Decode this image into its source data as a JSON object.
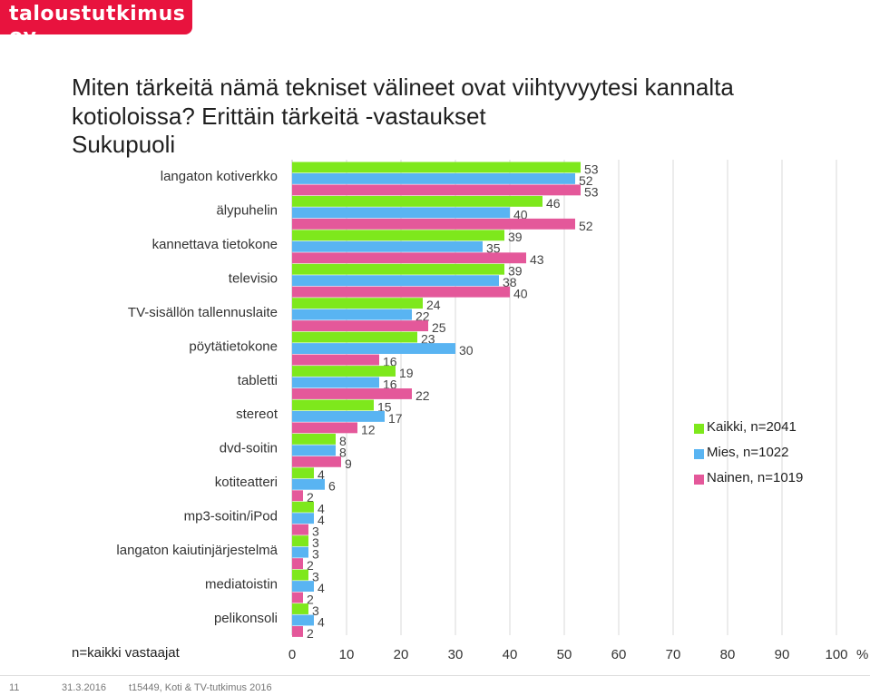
{
  "brand": {
    "logo_text": "taloustutkimus oy"
  },
  "title": "Miten tärkeitä nämä tekniset välineet ovat viihtyvyytesi kannalta kotioloissa? Erittäin tärkeitä -vastaukset",
  "subtitle": "Sukupuoli",
  "footnote": "n=kaikki vastaajat",
  "footer": {
    "page": "11",
    "date": "31.3.2016",
    "project": "t15449, Koti & TV-tutkimus 2016"
  },
  "legend": [
    {
      "label": "Kaikki, n=2041",
      "color": "#7ee81c"
    },
    {
      "label": "Mies, n=1022",
      "color": "#59b4f2"
    },
    {
      "label": "Nainen, n=1019",
      "color": "#e4589a"
    }
  ],
  "chart_data": {
    "type": "bar",
    "orientation": "horizontal",
    "categories": [
      "langaton kotiverkko",
      "älypuhelin",
      "kannettava tietokone",
      "televisio",
      "TV-sisällön tallennuslaite",
      "pöytätietokone",
      "tabletti",
      "stereot",
      "dvd-soitin",
      "kotiteatteri",
      "mp3-soitin/iPod",
      "langaton kaiutinjärjestelmä",
      "mediatoistin",
      "pelikonsoli"
    ],
    "series": [
      {
        "name": "Kaikki, n=2041",
        "color": "#7ee81c",
        "values": [
          53,
          46,
          39,
          39,
          24,
          23,
          19,
          15,
          8,
          4,
          4,
          3,
          3,
          3
        ]
      },
      {
        "name": "Mies, n=1022",
        "color": "#59b4f2",
        "values": [
          52,
          40,
          35,
          38,
          22,
          30,
          16,
          17,
          8,
          6,
          4,
          3,
          4,
          4
        ]
      },
      {
        "name": "Nainen, n=1019",
        "color": "#e4589a",
        "values": [
          53,
          52,
          43,
          40,
          25,
          16,
          22,
          12,
          9,
          2,
          3,
          2,
          2,
          2
        ]
      }
    ],
    "xlim": [
      0,
      100
    ],
    "xticks": [
      "0",
      "10",
      "20",
      "30",
      "40",
      "50",
      "60",
      "70",
      "80",
      "90",
      "100"
    ],
    "xunit": "%",
    "grid": true,
    "legend_position": "right"
  }
}
